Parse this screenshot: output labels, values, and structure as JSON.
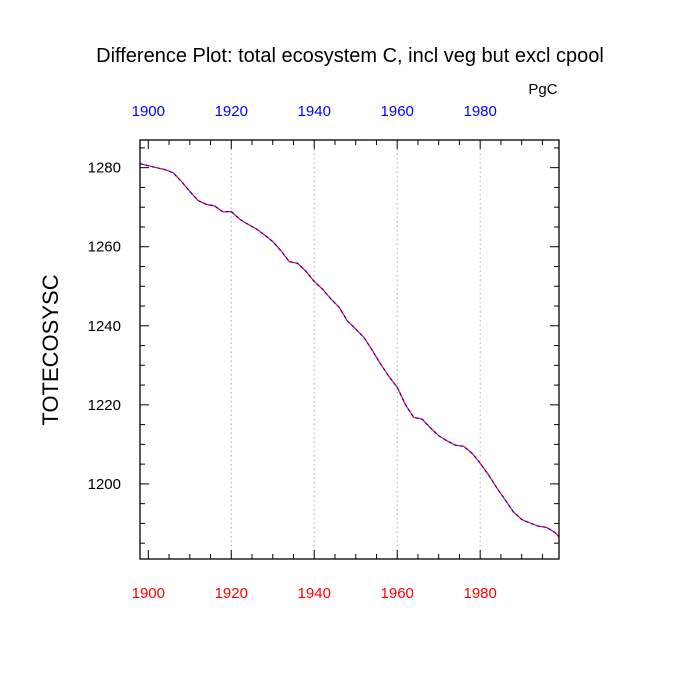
{
  "chart_data": {
    "type": "line",
    "title": "Difference Plot: total ecosystem C, incl veg but excl cpool",
    "units": "PgC",
    "ylabel": "TOTECOSYSC",
    "xlabel": "",
    "xlim": [
      1898,
      1999
    ],
    "ylim": [
      1181,
      1287
    ],
    "x_ticks": [
      1900,
      1920,
      1940,
      1960,
      1980
    ],
    "x_tick_labels_top": [
      "1900",
      "1920",
      "1940",
      "1960",
      "1980"
    ],
    "x_tick_labels_bottom": [
      "1900",
      "1920",
      "1940",
      "1960",
      "1980"
    ],
    "y_ticks": [
      1200,
      1220,
      1240,
      1260,
      1280
    ],
    "y_tick_labels": [
      "1200",
      "1220",
      "1240",
      "1260",
      "1280"
    ],
    "grid": "vertical dotted at major x ticks",
    "colors": {
      "top_ticks": "#0000ff",
      "bottom_ticks": "#ff0000",
      "series_a": "#ff0000",
      "series_b": "#0000ff"
    },
    "x": [
      1898,
      1900,
      1902,
      1904,
      1906,
      1908,
      1910,
      1912,
      1914,
      1916,
      1918,
      1920,
      1922,
      1924,
      1926,
      1928,
      1930,
      1932,
      1934,
      1936,
      1938,
      1940,
      1942,
      1944,
      1946,
      1948,
      1950,
      1952,
      1954,
      1956,
      1958,
      1960,
      1962,
      1964,
      1966,
      1968,
      1970,
      1972,
      1974,
      1976,
      1978,
      1980,
      1982,
      1984,
      1986,
      1988,
      1990,
      1992,
      1994,
      1996,
      1998,
      1999
    ],
    "series": [
      {
        "name": "difference",
        "values": [
          1281.0,
          1280.5,
          1280.0,
          1279.5,
          1278.7,
          1276.5,
          1274.0,
          1271.7,
          1270.7,
          1270.3,
          1268.8,
          1268.9,
          1267.0,
          1265.7,
          1264.5,
          1263.0,
          1261.3,
          1259.0,
          1256.2,
          1255.8,
          1253.8,
          1251.2,
          1249.3,
          1246.8,
          1244.7,
          1241.2,
          1239.2,
          1237.0,
          1233.8,
          1230.3,
          1227.2,
          1224.5,
          1220.0,
          1216.8,
          1216.4,
          1214.2,
          1212.2,
          1210.9,
          1209.8,
          1209.5,
          1207.8,
          1205.2,
          1202.3,
          1199.0,
          1196.0,
          1192.9,
          1191.0,
          1190.1,
          1189.3,
          1189.0,
          1187.7,
          1186.6
        ]
      }
    ]
  }
}
